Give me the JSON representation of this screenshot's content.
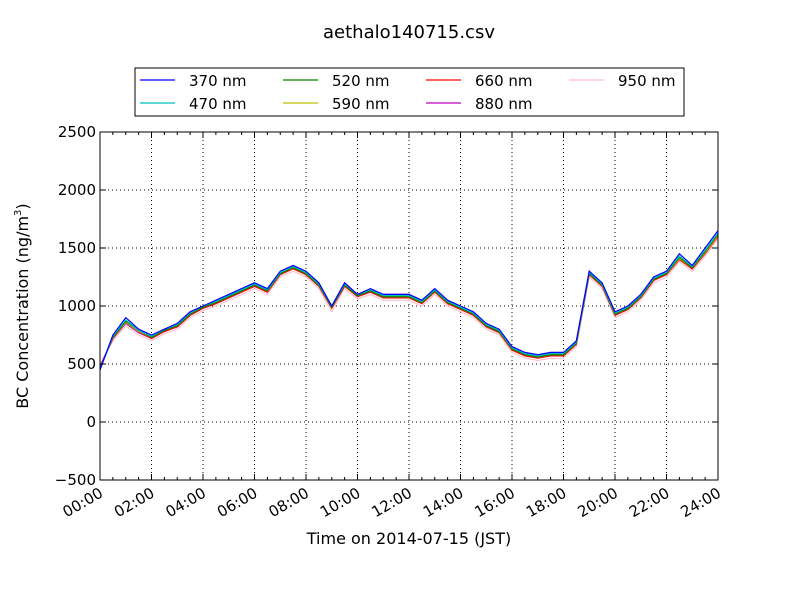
{
  "chart_data": {
    "type": "line",
    "title": "aethalo140715.csv",
    "xlabel": "Time on 2014-07-15 (JST)",
    "ylabel_main": "BC Concentration (ng/m",
    "ylabel_sup": "3",
    "ylabel_close": ")",
    "xlim": [
      0,
      24
    ],
    "ylim": [
      -500,
      2500
    ],
    "grid": true,
    "legend_position": "top-center",
    "x_tick_values": [
      0,
      2,
      4,
      6,
      8,
      10,
      12,
      14,
      16,
      18,
      20,
      22,
      24
    ],
    "x_tick_labels": [
      "00:00",
      "02:00",
      "04:00",
      "06:00",
      "08:00",
      "10:00",
      "12:00",
      "14:00",
      "16:00",
      "18:00",
      "20:00",
      "22:00",
      "24:00"
    ],
    "y_tick_values": [
      -500,
      0,
      500,
      1000,
      1500,
      2000,
      2500
    ],
    "y_tick_labels": [
      "−500",
      "0",
      "500",
      "1000",
      "1500",
      "2000",
      "2500"
    ],
    "x_hours": [
      0,
      0.5,
      1,
      1.5,
      2,
      2.5,
      3,
      3.5,
      4,
      4.5,
      5,
      5.5,
      6,
      6.5,
      7,
      7.5,
      8,
      8.5,
      9,
      9.5,
      10,
      10.5,
      11,
      11.5,
      12,
      12.5,
      13,
      13.5,
      14,
      14.5,
      15,
      15.5,
      16,
      16.5,
      17,
      17.5,
      18,
      18.5,
      19,
      19.5,
      20,
      20.5,
      21,
      21.5,
      22,
      22.5,
      23,
      23.5,
      24
    ],
    "series": [
      {
        "name": "370 nm",
        "color": "#0000ff",
        "values": [
          450,
          750,
          900,
          800,
          750,
          800,
          850,
          950,
          1000,
          1050,
          1100,
          1150,
          1200,
          1150,
          1300,
          1350,
          1300,
          1200,
          1000,
          1200,
          1100,
          1150,
          1100,
          1100,
          1100,
          1050,
          1150,
          1050,
          1000,
          950,
          850,
          800,
          650,
          600,
          580,
          600,
          600,
          700,
          1300,
          1200,
          950,
          1000,
          1100,
          1250,
          1300,
          1450,
          1350,
          1500,
          1650
        ]
      },
      {
        "name": "470 nm",
        "color": "#00bfbf",
        "values": [
          450,
          740,
          880,
          790,
          740,
          800,
          840,
          940,
          1000,
          1040,
          1090,
          1140,
          1190,
          1140,
          1290,
          1340,
          1290,
          1190,
          1000,
          1190,
          1100,
          1140,
          1090,
          1090,
          1090,
          1040,
          1140,
          1040,
          990,
          940,
          840,
          790,
          640,
          590,
          570,
          590,
          590,
          690,
          1290,
          1190,
          940,
          990,
          1090,
          1240,
          1290,
          1430,
          1340,
          1480,
          1630
        ]
      },
      {
        "name": "520 nm",
        "color": "#008000",
        "values": [
          460,
          730,
          870,
          790,
          730,
          790,
          830,
          930,
          990,
          1030,
          1080,
          1130,
          1180,
          1130,
          1280,
          1330,
          1280,
          1180,
          990,
          1180,
          1090,
          1130,
          1080,
          1080,
          1080,
          1030,
          1130,
          1030,
          980,
          930,
          830,
          780,
          630,
          580,
          560,
          580,
          580,
          680,
          1280,
          1180,
          930,
          980,
          1080,
          1230,
          1280,
          1420,
          1330,
          1470,
          1620
        ]
      },
      {
        "name": "590 nm",
        "color": "#bfbf00",
        "values": [
          460,
          730,
          860,
          780,
          730,
          790,
          830,
          930,
          990,
          1030,
          1080,
          1130,
          1180,
          1130,
          1280,
          1330,
          1280,
          1180,
          990,
          1180,
          1090,
          1130,
          1080,
          1080,
          1080,
          1030,
          1130,
          1030,
          980,
          930,
          830,
          780,
          630,
          580,
          560,
          580,
          580,
          680,
          1280,
          1180,
          930,
          980,
          1080,
          1230,
          1280,
          1410,
          1330,
          1460,
          1610
        ]
      },
      {
        "name": "660 nm",
        "color": "#ff0000",
        "values": [
          470,
          720,
          860,
          780,
          720,
          780,
          820,
          920,
          980,
          1020,
          1070,
          1120,
          1170,
          1120,
          1270,
          1320,
          1270,
          1170,
          980,
          1170,
          1080,
          1120,
          1070,
          1070,
          1070,
          1020,
          1120,
          1020,
          970,
          920,
          820,
          770,
          620,
          570,
          550,
          570,
          570,
          670,
          1270,
          1170,
          920,
          970,
          1070,
          1220,
          1270,
          1400,
          1320,
          1450,
          1600
        ]
      },
      {
        "name": "880 nm",
        "color": "#bf00bf",
        "values": [
          480,
          720,
          850,
          770,
          720,
          780,
          820,
          920,
          980,
          1020,
          1070,
          1120,
          1170,
          1120,
          1280,
          1330,
          1280,
          1180,
          1000,
          1200,
          1100,
          1140,
          1100,
          1100,
          1100,
          1040,
          1140,
          1040,
          990,
          940,
          840,
          790,
          630,
          580,
          560,
          580,
          580,
          700,
          1300,
          1180,
          930,
          980,
          1080,
          1230,
          1280,
          1410,
          1330,
          1460,
          1610
        ]
      },
      {
        "name": "950 nm",
        "color": "#ffc0cb",
        "values": [
          500,
          700,
          830,
          750,
          700,
          760,
          800,
          900,
          960,
          1000,
          1050,
          1100,
          1150,
          1100,
          1250,
          1300,
          1250,
          1150,
          950,
          1150,
          1060,
          1100,
          1050,
          1050,
          1050,
          1000,
          1100,
          1000,
          950,
          900,
          800,
          750,
          600,
          550,
          530,
          550,
          550,
          650,
          1250,
          1150,
          900,
          950,
          1050,
          1200,
          1250,
          1380,
          1300,
          1430,
          1580
        ]
      }
    ]
  }
}
